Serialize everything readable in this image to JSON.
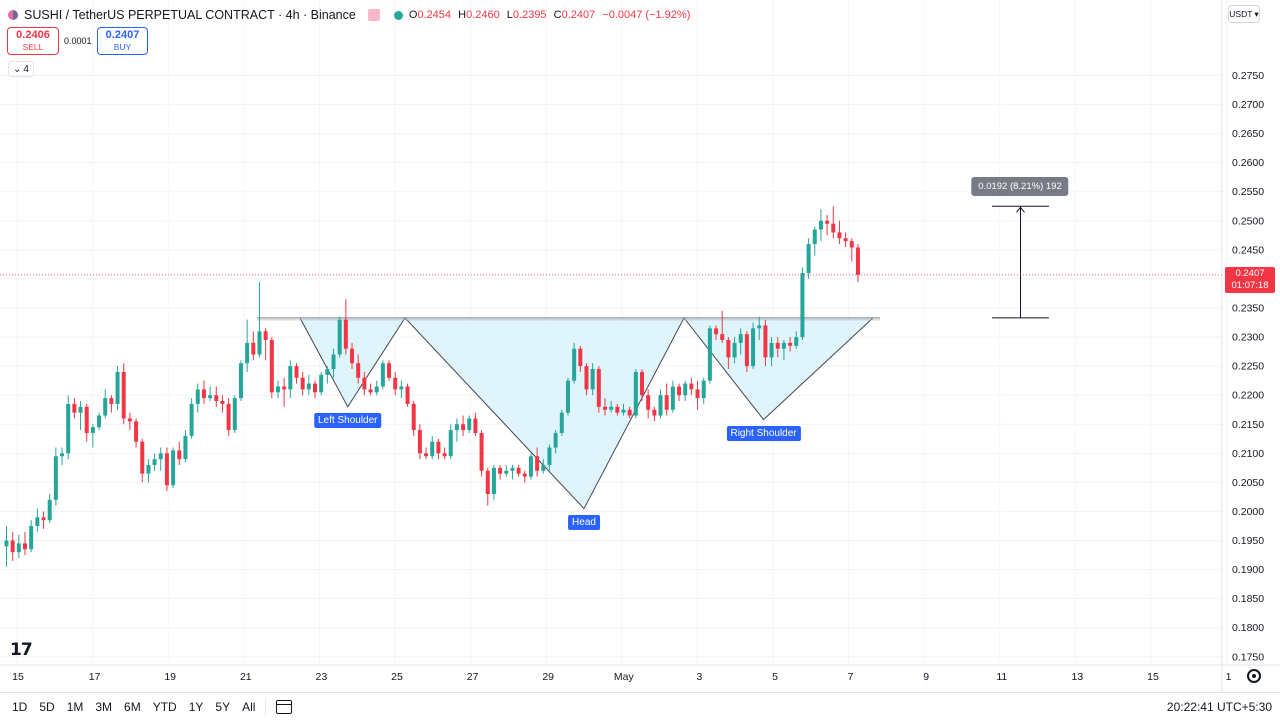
{
  "header": {
    "title": "SUSHI / TetherUS PERPETUAL CONTRACT · 4h · Binance",
    "open_label": "O",
    "open": "0.2454",
    "high_label": "H",
    "high": "0.2460",
    "low_label": "L",
    "low": "0.2395",
    "close_label": "C",
    "close": "0.2407",
    "change": "−0.0047 (−1.92%)"
  },
  "trade": {
    "sell_price": "0.2406",
    "sell_label": "SELL",
    "spread": "0.0001",
    "buy_price": "0.2407",
    "buy_label": "BUY"
  },
  "indicators_count": "4",
  "currency": "USDT",
  "current_price": {
    "value": "0.2407",
    "countdown": "01:07:18"
  },
  "measure": {
    "label": "0.0192 (8.21%) 192",
    "from": 0.2333,
    "to": 0.2525
  },
  "range_buttons": [
    "1D",
    "5D",
    "1M",
    "3M",
    "6M",
    "YTD",
    "1Y",
    "5Y",
    "All"
  ],
  "clock": "20:22:41 UTC+5:30",
  "colors": {
    "up": "#26a69a",
    "down": "#f23645",
    "annotation": "#2962ff",
    "pattern_fill": "#d9f2fa",
    "measure_label_bg": "#787b86"
  },
  "chart_data": {
    "type": "candlestick",
    "ylim": [
      0.1745,
      0.2795
    ],
    "y_ticks": [
      "0.2750",
      "0.2700",
      "0.2650",
      "0.2600",
      "0.2550",
      "0.2500",
      "0.2450",
      "0.2400",
      "0.2350",
      "0.2300",
      "0.2250",
      "0.2200",
      "0.2150",
      "0.2100",
      "0.2050",
      "0.2000",
      "0.1950",
      "0.1900",
      "0.1850",
      "0.1800",
      "0.1750"
    ],
    "x_ticks": [
      "15",
      "17",
      "19",
      "21",
      "23",
      "25",
      "27",
      "29",
      "May",
      "3",
      "5",
      "7",
      "9",
      "11",
      "13",
      "15",
      "1"
    ],
    "annotations": [
      {
        "text": "Left Shoulder",
        "date": "Apr 23 18:00",
        "price": 0.218
      },
      {
        "text": "Head",
        "date": "Apr 30 00:00",
        "price": 0.2005
      },
      {
        "text": "Right Shoulder",
        "date": "May 4 18:00",
        "price": 0.2158
      }
    ],
    "neckline": 0.2333,
    "candles": [
      {
        "o": 0.194,
        "h": 0.1975,
        "l": 0.1905,
        "c": 0.195
      },
      {
        "o": 0.195,
        "h": 0.1965,
        "l": 0.1915,
        "c": 0.193
      },
      {
        "o": 0.193,
        "h": 0.196,
        "l": 0.192,
        "c": 0.1945
      },
      {
        "o": 0.1945,
        "h": 0.1965,
        "l": 0.1925,
        "c": 0.1935
      },
      {
        "o": 0.1935,
        "h": 0.1985,
        "l": 0.193,
        "c": 0.1975
      },
      {
        "o": 0.1975,
        "h": 0.2005,
        "l": 0.1965,
        "c": 0.199
      },
      {
        "o": 0.199,
        "h": 0.2,
        "l": 0.197,
        "c": 0.1985
      },
      {
        "o": 0.1985,
        "h": 0.203,
        "l": 0.198,
        "c": 0.202
      },
      {
        "o": 0.202,
        "h": 0.211,
        "l": 0.201,
        "c": 0.2095
      },
      {
        "o": 0.2095,
        "h": 0.211,
        "l": 0.208,
        "c": 0.21
      },
      {
        "o": 0.21,
        "h": 0.22,
        "l": 0.209,
        "c": 0.2185
      },
      {
        "o": 0.2185,
        "h": 0.2195,
        "l": 0.216,
        "c": 0.217
      },
      {
        "o": 0.217,
        "h": 0.219,
        "l": 0.214,
        "c": 0.218
      },
      {
        "o": 0.218,
        "h": 0.2185,
        "l": 0.212,
        "c": 0.2135
      },
      {
        "o": 0.2135,
        "h": 0.215,
        "l": 0.211,
        "c": 0.2145
      },
      {
        "o": 0.2145,
        "h": 0.217,
        "l": 0.214,
        "c": 0.2165
      },
      {
        "o": 0.2165,
        "h": 0.221,
        "l": 0.216,
        "c": 0.2195
      },
      {
        "o": 0.2195,
        "h": 0.22,
        "l": 0.217,
        "c": 0.2185
      },
      {
        "o": 0.2185,
        "h": 0.225,
        "l": 0.2175,
        "c": 0.224
      },
      {
        "o": 0.224,
        "h": 0.2255,
        "l": 0.215,
        "c": 0.216
      },
      {
        "o": 0.216,
        "h": 0.217,
        "l": 0.214,
        "c": 0.2155
      },
      {
        "o": 0.2155,
        "h": 0.216,
        "l": 0.211,
        "c": 0.212
      },
      {
        "o": 0.212,
        "h": 0.2125,
        "l": 0.205,
        "c": 0.2065
      },
      {
        "o": 0.2065,
        "h": 0.209,
        "l": 0.205,
        "c": 0.208
      },
      {
        "o": 0.208,
        "h": 0.21,
        "l": 0.207,
        "c": 0.209
      },
      {
        "o": 0.209,
        "h": 0.211,
        "l": 0.207,
        "c": 0.21
      },
      {
        "o": 0.21,
        "h": 0.211,
        "l": 0.2035,
        "c": 0.2045
      },
      {
        "o": 0.2045,
        "h": 0.211,
        "l": 0.204,
        "c": 0.2105
      },
      {
        "o": 0.2105,
        "h": 0.212,
        "l": 0.208,
        "c": 0.209
      },
      {
        "o": 0.209,
        "h": 0.214,
        "l": 0.2085,
        "c": 0.213
      },
      {
        "o": 0.213,
        "h": 0.2195,
        "l": 0.2125,
        "c": 0.2185
      },
      {
        "o": 0.2185,
        "h": 0.222,
        "l": 0.217,
        "c": 0.221
      },
      {
        "o": 0.221,
        "h": 0.2225,
        "l": 0.2185,
        "c": 0.2195
      },
      {
        "o": 0.2195,
        "h": 0.2215,
        "l": 0.219,
        "c": 0.22
      },
      {
        "o": 0.22,
        "h": 0.2215,
        "l": 0.218,
        "c": 0.219
      },
      {
        "o": 0.219,
        "h": 0.22,
        "l": 0.217,
        "c": 0.2185
      },
      {
        "o": 0.2185,
        "h": 0.2195,
        "l": 0.213,
        "c": 0.214
      },
      {
        "o": 0.214,
        "h": 0.22,
        "l": 0.2135,
        "c": 0.2195
      },
      {
        "o": 0.2195,
        "h": 0.226,
        "l": 0.219,
        "c": 0.2255
      },
      {
        "o": 0.2255,
        "h": 0.233,
        "l": 0.224,
        "c": 0.229
      },
      {
        "o": 0.229,
        "h": 0.231,
        "l": 0.226,
        "c": 0.227
      },
      {
        "o": 0.227,
        "h": 0.2395,
        "l": 0.2265,
        "c": 0.231
      },
      {
        "o": 0.231,
        "h": 0.2315,
        "l": 0.226,
        "c": 0.2295
      },
      {
        "o": 0.2295,
        "h": 0.23,
        "l": 0.2195,
        "c": 0.2205
      },
      {
        "o": 0.2205,
        "h": 0.2225,
        "l": 0.2195,
        "c": 0.2215
      },
      {
        "o": 0.2215,
        "h": 0.223,
        "l": 0.218,
        "c": 0.221
      },
      {
        "o": 0.221,
        "h": 0.226,
        "l": 0.2195,
        "c": 0.225
      },
      {
        "o": 0.225,
        "h": 0.2255,
        "l": 0.222,
        "c": 0.223
      },
      {
        "o": 0.223,
        "h": 0.224,
        "l": 0.22,
        "c": 0.221
      },
      {
        "o": 0.221,
        "h": 0.2235,
        "l": 0.22,
        "c": 0.222
      },
      {
        "o": 0.222,
        "h": 0.2225,
        "l": 0.2195,
        "c": 0.2205
      },
      {
        "o": 0.2205,
        "h": 0.224,
        "l": 0.22,
        "c": 0.2235
      },
      {
        "o": 0.2235,
        "h": 0.225,
        "l": 0.222,
        "c": 0.2245
      },
      {
        "o": 0.2245,
        "h": 0.228,
        "l": 0.223,
        "c": 0.227
      },
      {
        "o": 0.227,
        "h": 0.2335,
        "l": 0.2265,
        "c": 0.233
      },
      {
        "o": 0.233,
        "h": 0.2365,
        "l": 0.227,
        "c": 0.228
      },
      {
        "o": 0.228,
        "h": 0.229,
        "l": 0.2245,
        "c": 0.2255
      },
      {
        "o": 0.2255,
        "h": 0.227,
        "l": 0.222,
        "c": 0.223
      },
      {
        "o": 0.223,
        "h": 0.224,
        "l": 0.22,
        "c": 0.221
      },
      {
        "o": 0.221,
        "h": 0.222,
        "l": 0.22,
        "c": 0.2205
      },
      {
        "o": 0.2205,
        "h": 0.2225,
        "l": 0.22,
        "c": 0.2215
      },
      {
        "o": 0.2215,
        "h": 0.226,
        "l": 0.221,
        "c": 0.2255
      },
      {
        "o": 0.2255,
        "h": 0.226,
        "l": 0.2225,
        "c": 0.223
      },
      {
        "o": 0.223,
        "h": 0.224,
        "l": 0.22,
        "c": 0.221
      },
      {
        "o": 0.221,
        "h": 0.2225,
        "l": 0.2195,
        "c": 0.2215
      },
      {
        "o": 0.2215,
        "h": 0.222,
        "l": 0.218,
        "c": 0.2185
      },
      {
        "o": 0.2185,
        "h": 0.219,
        "l": 0.213,
        "c": 0.214
      },
      {
        "o": 0.214,
        "h": 0.215,
        "l": 0.209,
        "c": 0.21
      },
      {
        "o": 0.21,
        "h": 0.211,
        "l": 0.209,
        "c": 0.2095
      },
      {
        "o": 0.2095,
        "h": 0.213,
        "l": 0.209,
        "c": 0.212
      },
      {
        "o": 0.212,
        "h": 0.2125,
        "l": 0.209,
        "c": 0.21
      },
      {
        "o": 0.21,
        "h": 0.211,
        "l": 0.209,
        "c": 0.2095
      },
      {
        "o": 0.2095,
        "h": 0.215,
        "l": 0.209,
        "c": 0.214
      },
      {
        "o": 0.214,
        "h": 0.216,
        "l": 0.212,
        "c": 0.215
      },
      {
        "o": 0.215,
        "h": 0.2165,
        "l": 0.213,
        "c": 0.214
      },
      {
        "o": 0.214,
        "h": 0.2165,
        "l": 0.2135,
        "c": 0.216
      },
      {
        "o": 0.216,
        "h": 0.217,
        "l": 0.213,
        "c": 0.2135
      },
      {
        "o": 0.2135,
        "h": 0.214,
        "l": 0.206,
        "c": 0.207
      },
      {
        "o": 0.207,
        "h": 0.2075,
        "l": 0.201,
        "c": 0.203
      },
      {
        "o": 0.203,
        "h": 0.208,
        "l": 0.202,
        "c": 0.2075
      },
      {
        "o": 0.2075,
        "h": 0.208,
        "l": 0.2055,
        "c": 0.2065
      },
      {
        "o": 0.2065,
        "h": 0.208,
        "l": 0.206,
        "c": 0.207
      },
      {
        "o": 0.207,
        "h": 0.208,
        "l": 0.2055,
        "c": 0.2075
      },
      {
        "o": 0.2075,
        "h": 0.208,
        "l": 0.206,
        "c": 0.2065
      },
      {
        "o": 0.2065,
        "h": 0.207,
        "l": 0.205,
        "c": 0.206
      },
      {
        "o": 0.206,
        "h": 0.21,
        "l": 0.2055,
        "c": 0.2095
      },
      {
        "o": 0.2095,
        "h": 0.211,
        "l": 0.206,
        "c": 0.207
      },
      {
        "o": 0.207,
        "h": 0.209,
        "l": 0.2065,
        "c": 0.208
      },
      {
        "o": 0.208,
        "h": 0.2115,
        "l": 0.207,
        "c": 0.211
      },
      {
        "o": 0.211,
        "h": 0.214,
        "l": 0.21,
        "c": 0.2135
      },
      {
        "o": 0.2135,
        "h": 0.2175,
        "l": 0.213,
        "c": 0.217
      },
      {
        "o": 0.217,
        "h": 0.223,
        "l": 0.2165,
        "c": 0.2225
      },
      {
        "o": 0.2225,
        "h": 0.229,
        "l": 0.222,
        "c": 0.228
      },
      {
        "o": 0.228,
        "h": 0.2285,
        "l": 0.224,
        "c": 0.225
      },
      {
        "o": 0.225,
        "h": 0.2255,
        "l": 0.22,
        "c": 0.221
      },
      {
        "o": 0.221,
        "h": 0.2255,
        "l": 0.22,
        "c": 0.2245
      },
      {
        "o": 0.2245,
        "h": 0.225,
        "l": 0.217,
        "c": 0.218
      },
      {
        "o": 0.218,
        "h": 0.2195,
        "l": 0.2165,
        "c": 0.2175
      },
      {
        "o": 0.2175,
        "h": 0.219,
        "l": 0.217,
        "c": 0.218
      },
      {
        "o": 0.218,
        "h": 0.2185,
        "l": 0.2165,
        "c": 0.217
      },
      {
        "o": 0.217,
        "h": 0.2185,
        "l": 0.2165,
        "c": 0.2175
      },
      {
        "o": 0.2175,
        "h": 0.218,
        "l": 0.216,
        "c": 0.2165
      },
      {
        "o": 0.2165,
        "h": 0.2245,
        "l": 0.216,
        "c": 0.224
      },
      {
        "o": 0.224,
        "h": 0.2245,
        "l": 0.219,
        "c": 0.22
      },
      {
        "o": 0.22,
        "h": 0.221,
        "l": 0.216,
        "c": 0.2175
      },
      {
        "o": 0.2175,
        "h": 0.218,
        "l": 0.2155,
        "c": 0.2165
      },
      {
        "o": 0.2165,
        "h": 0.221,
        "l": 0.216,
        "c": 0.22
      },
      {
        "o": 0.22,
        "h": 0.222,
        "l": 0.2165,
        "c": 0.2175
      },
      {
        "o": 0.2175,
        "h": 0.2225,
        "l": 0.217,
        "c": 0.2215
      },
      {
        "o": 0.2215,
        "h": 0.222,
        "l": 0.219,
        "c": 0.22
      },
      {
        "o": 0.22,
        "h": 0.2225,
        "l": 0.219,
        "c": 0.222
      },
      {
        "o": 0.222,
        "h": 0.223,
        "l": 0.22,
        "c": 0.221
      },
      {
        "o": 0.221,
        "h": 0.2225,
        "l": 0.2175,
        "c": 0.2195
      },
      {
        "o": 0.2195,
        "h": 0.223,
        "l": 0.2185,
        "c": 0.2225
      },
      {
        "o": 0.2225,
        "h": 0.232,
        "l": 0.222,
        "c": 0.2315
      },
      {
        "o": 0.2315,
        "h": 0.232,
        "l": 0.2295,
        "c": 0.2305
      },
      {
        "o": 0.2305,
        "h": 0.2345,
        "l": 0.229,
        "c": 0.2295
      },
      {
        "o": 0.2295,
        "h": 0.23,
        "l": 0.2245,
        "c": 0.2265
      },
      {
        "o": 0.2265,
        "h": 0.23,
        "l": 0.2255,
        "c": 0.229
      },
      {
        "o": 0.229,
        "h": 0.2315,
        "l": 0.227,
        "c": 0.2305
      },
      {
        "o": 0.2305,
        "h": 0.231,
        "l": 0.224,
        "c": 0.225
      },
      {
        "o": 0.225,
        "h": 0.2325,
        "l": 0.2245,
        "c": 0.2315
      },
      {
        "o": 0.2315,
        "h": 0.2335,
        "l": 0.2295,
        "c": 0.232
      },
      {
        "o": 0.232,
        "h": 0.233,
        "l": 0.225,
        "c": 0.2265
      },
      {
        "o": 0.2265,
        "h": 0.23,
        "l": 0.225,
        "c": 0.229
      },
      {
        "o": 0.229,
        "h": 0.23,
        "l": 0.2265,
        "c": 0.228
      },
      {
        "o": 0.228,
        "h": 0.2295,
        "l": 0.226,
        "c": 0.229
      },
      {
        "o": 0.229,
        "h": 0.23,
        "l": 0.2275,
        "c": 0.2285
      },
      {
        "o": 0.2285,
        "h": 0.231,
        "l": 0.228,
        "c": 0.23
      },
      {
        "o": 0.23,
        "h": 0.242,
        "l": 0.2295,
        "c": 0.241
      },
      {
        "o": 0.241,
        "h": 0.247,
        "l": 0.24,
        "c": 0.246
      },
      {
        "o": 0.246,
        "h": 0.249,
        "l": 0.244,
        "c": 0.2485
      },
      {
        "o": 0.2485,
        "h": 0.252,
        "l": 0.2465,
        "c": 0.25
      },
      {
        "o": 0.25,
        "h": 0.251,
        "l": 0.2475,
        "c": 0.2495
      },
      {
        "o": 0.2495,
        "h": 0.2525,
        "l": 0.247,
        "c": 0.248
      },
      {
        "o": 0.248,
        "h": 0.25,
        "l": 0.246,
        "c": 0.247
      },
      {
        "o": 0.247,
        "h": 0.248,
        "l": 0.2455,
        "c": 0.2465
      },
      {
        "o": 0.2465,
        "h": 0.247,
        "l": 0.243,
        "c": 0.2454
      },
      {
        "o": 0.2454,
        "h": 0.246,
        "l": 0.2395,
        "c": 0.2407
      }
    ]
  }
}
